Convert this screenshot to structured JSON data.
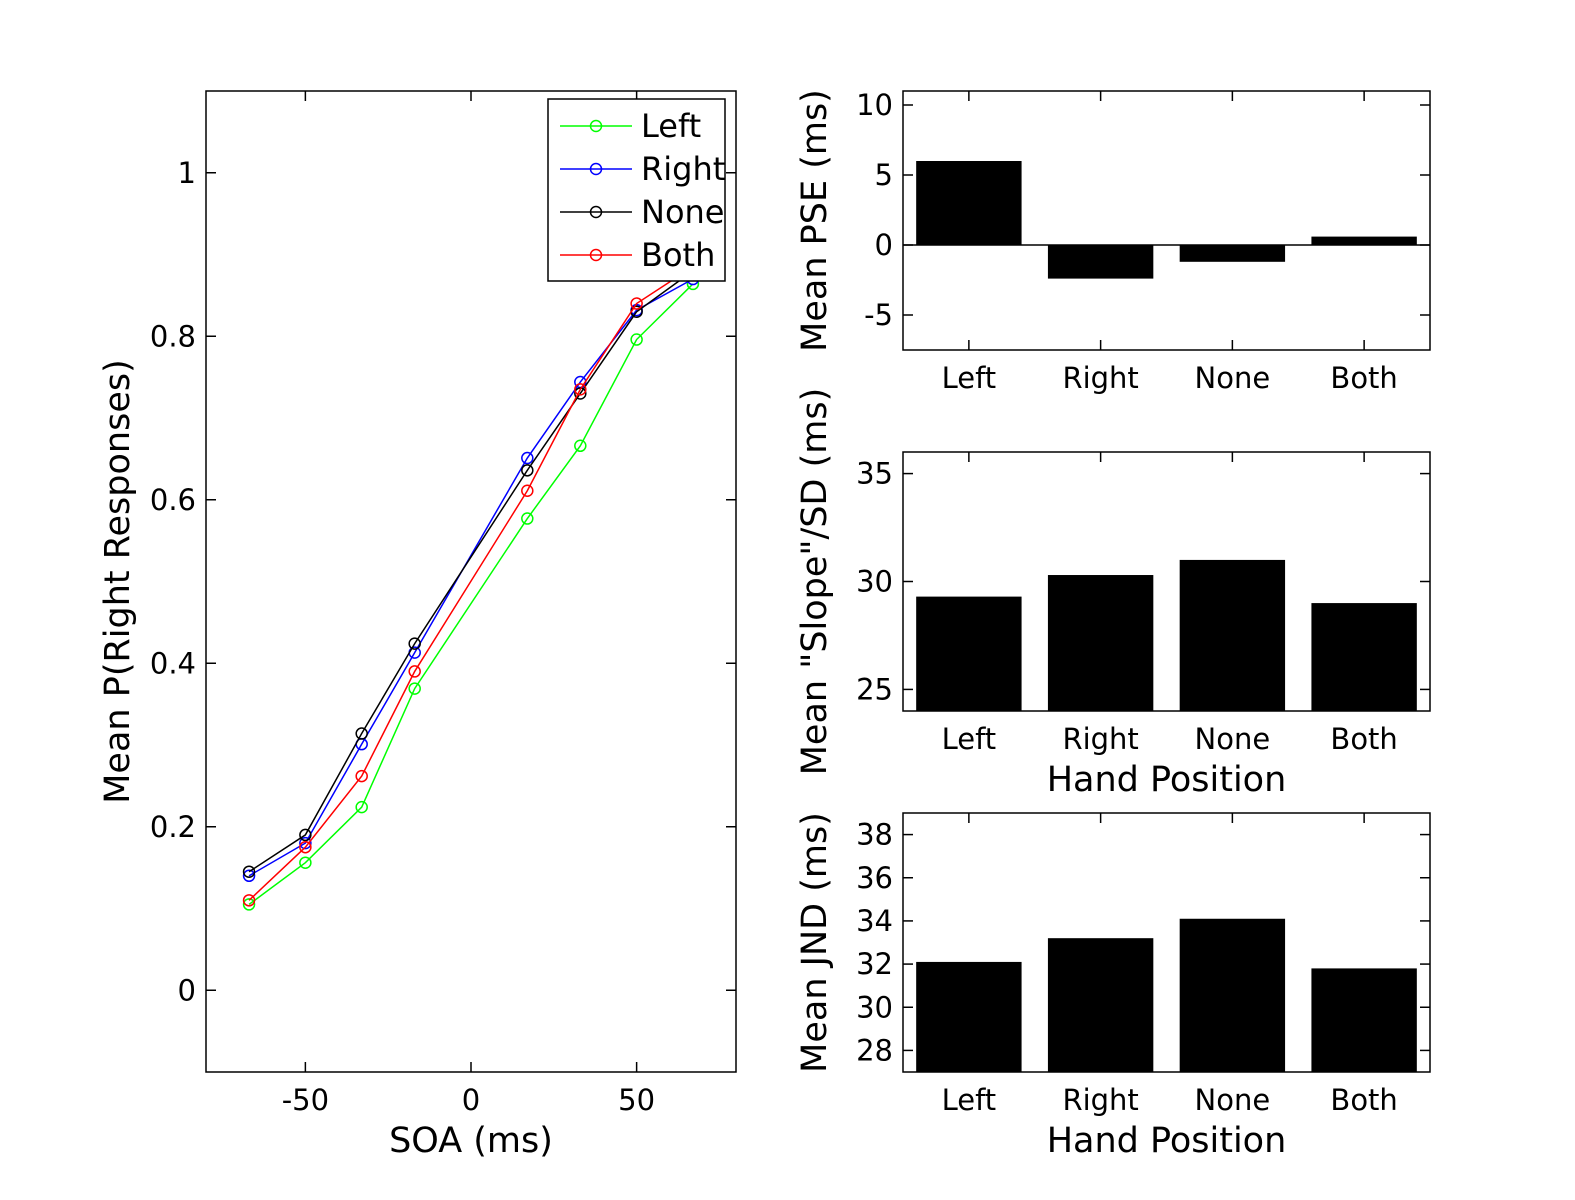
{
  "chart_data": [
    {
      "type": "line",
      "xlabel": "SOA (ms)",
      "ylabel": "Mean P(Right Responses)",
      "xlim": [
        -80,
        80
      ],
      "ylim": [
        -0.1,
        1.1
      ],
      "xticks": [
        -50,
        0,
        50
      ],
      "yticks": [
        0,
        0.2,
        0.4,
        0.6,
        0.8,
        1
      ],
      "xtick_labels": [
        "-50",
        "0",
        "50"
      ],
      "ytick_labels": [
        "0",
        "0.2",
        "0.4",
        "0.6",
        "0.8",
        "1"
      ],
      "legend_position": "top-right",
      "grid": false,
      "x": [
        -67,
        -50,
        -33,
        -17,
        17,
        33,
        50,
        67
      ],
      "series": [
        {
          "name": "Left",
          "color": "#00ff00",
          "values": [
            0.105,
            0.156,
            0.224,
            0.369,
            0.577,
            0.666,
            0.796,
            0.864
          ]
        },
        {
          "name": "Right",
          "color": "#0000ff",
          "values": [
            0.14,
            0.18,
            0.301,
            0.413,
            0.651,
            0.744,
            0.832,
            0.87
          ]
        },
        {
          "name": "None",
          "color": "#000000",
          "values": [
            0.145,
            0.19,
            0.314,
            0.424,
            0.636,
            0.73,
            0.83,
            0.88
          ]
        },
        {
          "name": "Both",
          "color": "#ff0000",
          "values": [
            0.11,
            0.175,
            0.262,
            0.39,
            0.611,
            0.735,
            0.84,
            0.885
          ]
        }
      ]
    },
    {
      "type": "bar",
      "xlabel": "",
      "ylabel": "Mean PSE (ms)",
      "categories": [
        "Left",
        "Right",
        "None",
        "Both"
      ],
      "values": [
        6,
        -2.4,
        -1.2,
        0.6
      ],
      "ylim": [
        -7.5,
        11
      ],
      "yticks": [
        -5,
        0,
        5,
        10
      ],
      "ytick_labels": [
        "-5",
        "0",
        "5",
        "10"
      ],
      "bar_color": "#000000"
    },
    {
      "type": "bar",
      "xlabel": "Hand Position",
      "ylabel": "Mean \"Slope\"/SD (ms)",
      "categories": [
        "Left",
        "Right",
        "None",
        "Both"
      ],
      "values": [
        29.3,
        30.3,
        31.0,
        29.0
      ],
      "ylim": [
        24,
        36
      ],
      "yticks": [
        25,
        30,
        35
      ],
      "ytick_labels": [
        "25",
        "30",
        "35"
      ],
      "bar_color": "#000000"
    },
    {
      "type": "bar",
      "xlabel": "Hand Position",
      "ylabel": "Mean JND (ms)",
      "categories": [
        "Left",
        "Right",
        "None",
        "Both"
      ],
      "values": [
        32.1,
        33.2,
        34.1,
        31.8
      ],
      "ylim": [
        27,
        39
      ],
      "yticks": [
        28,
        30,
        32,
        34,
        36,
        38
      ],
      "ytick_labels": [
        "28",
        "30",
        "32",
        "34",
        "36",
        "38"
      ],
      "bar_color": "#000000"
    }
  ]
}
